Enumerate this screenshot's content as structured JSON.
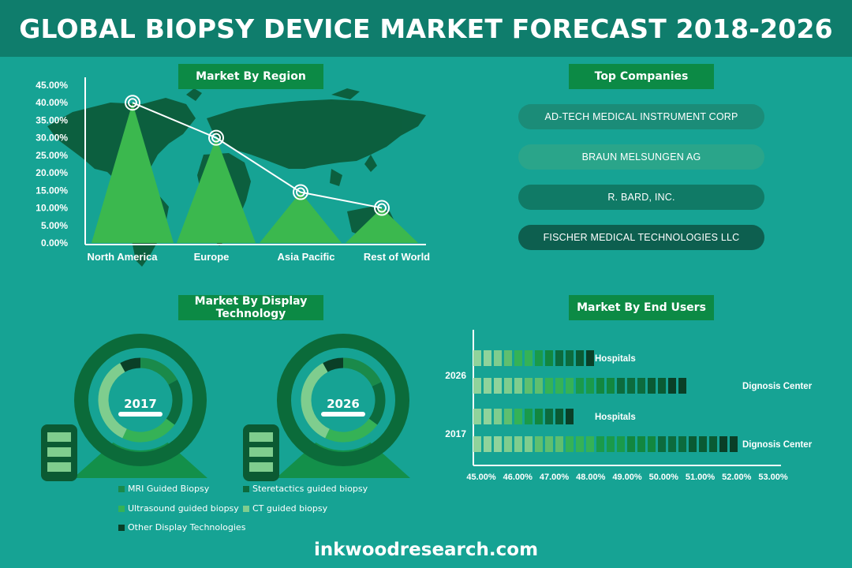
{
  "title": "GLOBAL BIOPSY DEVICE MARKET FORECAST 2018-2026",
  "footer": "inkwoodresearch.com",
  "colors": {
    "background": "#16a394",
    "title_bar": "#0f7d6c",
    "label_green": "#0c8a45",
    "peak": "#3bb84e",
    "map": "#0c5c3a"
  },
  "region_panel": {
    "label": "Market By Region",
    "chart_data": {
      "type": "line",
      "title": "Market By Region",
      "categories": [
        "North America",
        "Europe",
        "Asia Pacific",
        "Rest of World"
      ],
      "values": [
        40,
        30,
        14.5,
        10
      ],
      "y_ticks": [
        "45.00%",
        "40.00%",
        "35.00%",
        "30.00%",
        "25.00%",
        "20.00%",
        "15.00%",
        "10.00%",
        "5.00%",
        "0.00%"
      ],
      "ylim": [
        0,
        45
      ],
      "unit": "%",
      "grid": false
    }
  },
  "companies_panel": {
    "label": "Top Companies",
    "items": [
      {
        "name": "AD-TECH MEDICAL INSTRUMENT CORP",
        "color": "#1b8c78"
      },
      {
        "name": "BRAUN MELSUNGEN AG",
        "color": "#2aa58a"
      },
      {
        "name": "R. BARD, INC.",
        "color": "#107a66"
      },
      {
        "name": "FISCHER MEDICAL TECHNOLOGIES LLC",
        "color": "#0d5f4f"
      }
    ]
  },
  "display_panel": {
    "label": "Market By Display Technology",
    "chart_data": [
      {
        "type": "donut",
        "title": "2017",
        "series": [
          {
            "name": "MRI Guided Biopsy",
            "color": "#1a8a4a",
            "share": 0.17
          },
          {
            "name": "Steretactics guided biopsy",
            "color": "#0c6b3d",
            "share": 0.18
          },
          {
            "name": "Ultrasound guided biopsy",
            "color": "#35b256",
            "share": 0.22
          },
          {
            "name": "CT guided biopsy",
            "color": "#7fcd8e",
            "share": 0.35
          },
          {
            "name": "Other Display Technologies",
            "color": "#0a3f27",
            "share": 0.08
          }
        ]
      },
      {
        "type": "donut",
        "title": "2026",
        "series": [
          {
            "name": "MRI Guided Biopsy",
            "color": "#1a8a4a",
            "share": 0.18
          },
          {
            "name": "Steretactics guided biopsy",
            "color": "#0c6b3d",
            "share": 0.17
          },
          {
            "name": "Ultrasound guided biopsy",
            "color": "#35b256",
            "share": 0.22
          },
          {
            "name": "CT guided biopsy",
            "color": "#7fcd8e",
            "share": 0.35
          },
          {
            "name": "Other Display Technologies",
            "color": "#0a3f27",
            "share": 0.08
          }
        ]
      }
    ],
    "legend": [
      {
        "name": "MRI Guided Biopsy",
        "color": "#1a8a4a"
      },
      {
        "name": "Steretactics guided biopsy",
        "color": "#0c6b3d"
      },
      {
        "name": "Ultrasound guided biopsy",
        "color": "#35b256"
      },
      {
        "name": "CT guided biopsy",
        "color": "#7fcd8e"
      },
      {
        "name": "Other Display Technologies",
        "color": "#0a3f27"
      }
    ]
  },
  "end_users_panel": {
    "label": "Market By End Users",
    "chart_data": {
      "type": "bar",
      "orientation": "horizontal",
      "title": "Market By End Users",
      "x_ticks": [
        "45.00%",
        "46.00%",
        "47.00%",
        "48.00%",
        "49.00%",
        "50.00%",
        "51.00%",
        "52.00%",
        "53.00%"
      ],
      "xlim": [
        45,
        53
      ],
      "groups": [
        {
          "label": "2026",
          "bars": [
            {
              "name": "Hospitals",
              "value": 48.3
            },
            {
              "name": "Dignosis Center",
              "value": 50.8
            }
          ]
        },
        {
          "label": "2017",
          "bars": [
            {
              "name": "Hospitals",
              "value": 47.8
            },
            {
              "name": "Dignosis Center",
              "value": 52.3
            }
          ]
        }
      ]
    }
  }
}
